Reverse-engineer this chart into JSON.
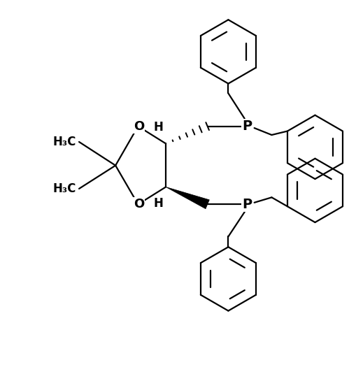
{
  "bg_color": "#ffffff",
  "line_color": "#000000",
  "lw": 1.6,
  "figsize": [
    4.99,
    5.25
  ],
  "dpi": 100,
  "xlim": [
    0,
    10
  ],
  "ylim": [
    0,
    10.5
  ]
}
